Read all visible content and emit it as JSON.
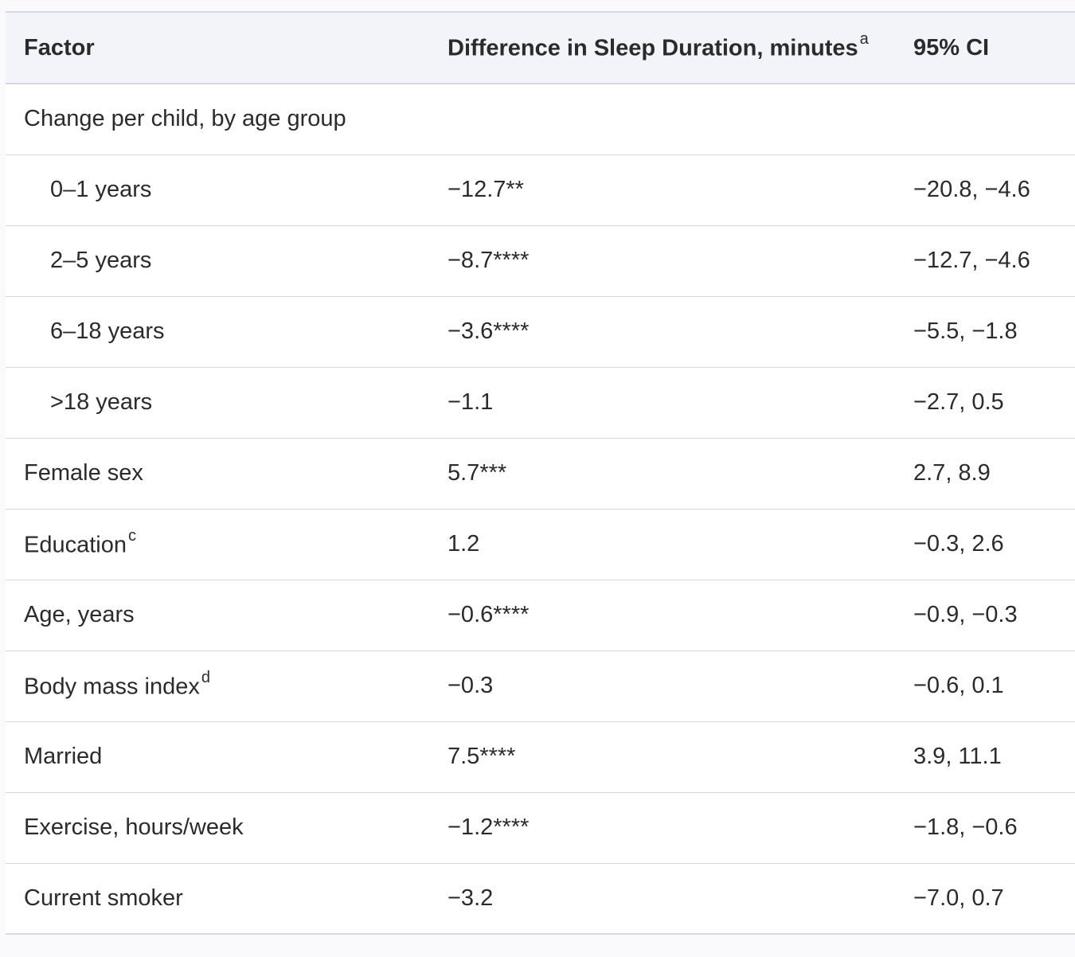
{
  "table": {
    "headers": {
      "factor": "Factor",
      "difference": "Difference in Sleep Duration, minutes",
      "difference_note": "a",
      "ci": "95% CI"
    },
    "rows": [
      {
        "factor": "Change per child, by age group",
        "note": "",
        "value": "",
        "ci": "",
        "indent": false
      },
      {
        "factor": "0–1 years",
        "note": "",
        "value": "−12.7**",
        "ci": "−20.8, −4.6",
        "indent": true
      },
      {
        "factor": "2–5 years",
        "note": "",
        "value": "−8.7****",
        "ci": "−12.7, −4.6",
        "indent": true
      },
      {
        "factor": "6–18 years",
        "note": "",
        "value": "−3.6****",
        "ci": "−5.5, −1.8",
        "indent": true
      },
      {
        "factor": ">18 years",
        "note": "",
        "value": "−1.1",
        "ci": "−2.7, 0.5",
        "indent": true
      },
      {
        "factor": "Female sex",
        "note": "",
        "value": "5.7***",
        "ci": "2.7, 8.9",
        "indent": false
      },
      {
        "factor": "Education",
        "note": "c",
        "value": "1.2",
        "ci": "−0.3, 2.6",
        "indent": false
      },
      {
        "factor": "Age, years",
        "note": "",
        "value": "−0.6****",
        "ci": "−0.9, −0.3",
        "indent": false
      },
      {
        "factor": "Body mass index",
        "note": "d",
        "value": "−0.3",
        "ci": "−0.6, 0.1",
        "indent": false
      },
      {
        "factor": "Married",
        "note": "",
        "value": "7.5****",
        "ci": "3.9, 11.1",
        "indent": false
      },
      {
        "factor": "Exercise, hours/week",
        "note": "",
        "value": "−1.2****",
        "ci": "−1.8, −0.6",
        "indent": false
      },
      {
        "factor": "Current smoker",
        "note": "",
        "value": "−3.2",
        "ci": "−7.0, 0.7",
        "indent": false
      }
    ]
  }
}
